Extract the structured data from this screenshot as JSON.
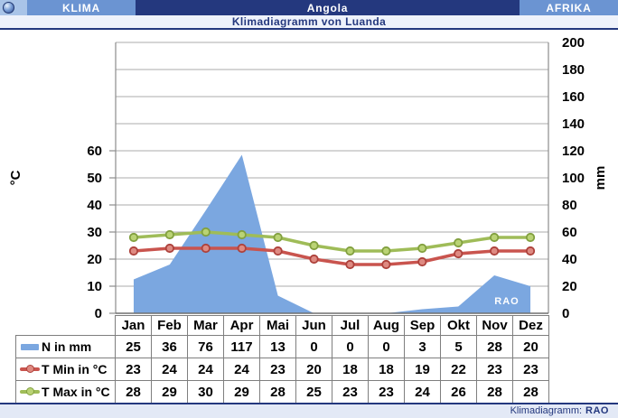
{
  "header": {
    "left": "KLIMA",
    "center": "Angola",
    "right": "AFRIKA"
  },
  "footer": {
    "label": "Klimadiagramm:",
    "brand": "RAO"
  },
  "watermark": "RAO",
  "colors": {
    "navy": "#24387e",
    "header_blue": "#6b94d2",
    "pale_blue": "#a9c4e8",
    "subtitle_bg": "#eef2fb",
    "footer_bg": "#e3e9f6",
    "gridline": "#ababab",
    "axis_line": "#8c8c8c",
    "table_border": "#7f7f7f"
  },
  "chart_data": {
    "type": "area",
    "title": "Klimadiagramm von Luanda",
    "categories": [
      "Jan",
      "Feb",
      "Mar",
      "Apr",
      "Mai",
      "Jun",
      "Jul",
      "Aug",
      "Sep",
      "Okt",
      "Nov",
      "Dez"
    ],
    "series": [
      {
        "name": "N in mm",
        "kind": "area",
        "axis": "mm",
        "color": "#7ba7e0",
        "values": [
          25,
          36,
          76,
          117,
          13,
          0,
          0,
          0,
          3,
          5,
          28,
          20
        ]
      },
      {
        "name": "T Min in °C",
        "kind": "line",
        "axis": "°C",
        "color": "#c9544e",
        "marker_fill": "#de8a82",
        "marker_stroke": "#ad413b",
        "values": [
          23,
          24,
          24,
          24,
          23,
          20,
          18,
          18,
          19,
          22,
          23,
          23
        ]
      },
      {
        "name": "T Max in °C",
        "kind": "line",
        "axis": "°C",
        "color": "#9fbc58",
        "marker_fill": "#bad375",
        "marker_stroke": "#82a03f",
        "values": [
          28,
          29,
          30,
          29,
          28,
          25,
          23,
          23,
          24,
          26,
          28,
          28
        ]
      }
    ],
    "left_axis": {
      "label": "°C",
      "ticks": [
        0,
        10,
        20,
        30,
        40,
        50,
        60
      ],
      "range": [
        0,
        100
      ]
    },
    "right_axis": {
      "label": "mm",
      "ticks": [
        0,
        20,
        40,
        60,
        80,
        100,
        120,
        140,
        160,
        180,
        200
      ],
      "range": [
        0,
        200
      ]
    },
    "grid": true,
    "legend_position": "table-left"
  }
}
